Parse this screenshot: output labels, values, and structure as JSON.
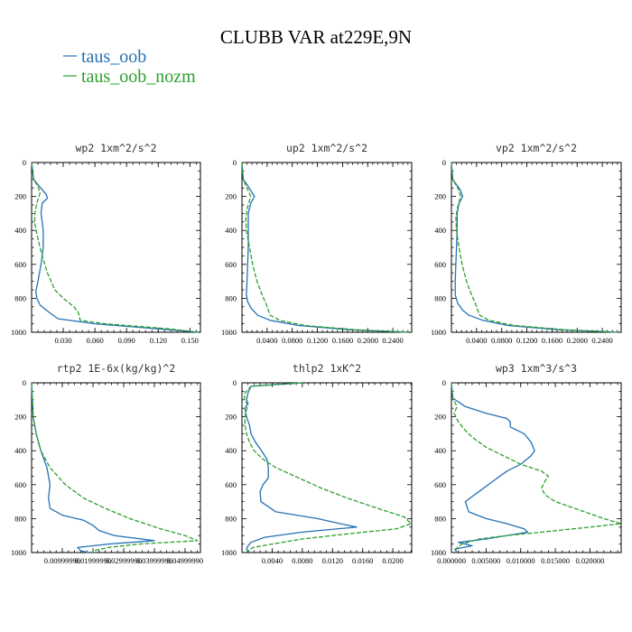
{
  "title": "CLUBB VAR at229E,9N",
  "legend": [
    {
      "label": "taus_oob",
      "color": "#2471b5"
    },
    {
      "label": "taus_oob_nozm",
      "color": "#2ca02c"
    }
  ],
  "chart_data": [
    {
      "type": "line",
      "title": "wp2  1xm^2/s^2",
      "ylim": [
        1000,
        0
      ],
      "xlim": [
        0,
        0.16
      ],
      "xticks": [
        0.03,
        0.06,
        0.09,
        0.12,
        0.15
      ],
      "xtick_labels": [
        "0.030",
        "0.060",
        "0.090",
        "0.120",
        "0.150"
      ],
      "yticks": [
        0,
        200,
        400,
        600,
        800,
        1000
      ],
      "series": [
        {
          "name": "taus_oob",
          "color": "#2471b5",
          "dash": "",
          "p": [
            0,
            100,
            130,
            160,
            190,
            210,
            240,
            300,
            400,
            500,
            600,
            700,
            760,
            800,
            840,
            880,
            920,
            950,
            980,
            1000
          ],
          "v": [
            0.0,
            0.002,
            0.006,
            0.01,
            0.014,
            0.015,
            0.01,
            0.009,
            0.011,
            0.011,
            0.009,
            0.006,
            0.004,
            0.005,
            0.008,
            0.016,
            0.025,
            0.06,
            0.12,
            0.158
          ]
        },
        {
          "name": "taus_oob_nozm",
          "color": "#2ca02c",
          "dash": "5,2",
          "p": [
            0,
            100,
            140,
            180,
            240,
            300,
            360,
            450,
            550,
            650,
            750,
            800,
            850,
            880,
            900,
            930,
            950,
            980,
            1000
          ],
          "v": [
            0.0,
            0.002,
            0.006,
            0.008,
            0.005,
            0.003,
            0.003,
            0.006,
            0.01,
            0.015,
            0.022,
            0.03,
            0.04,
            0.044,
            0.045,
            0.046,
            0.07,
            0.13,
            0.158
          ]
        }
      ]
    },
    {
      "type": "line",
      "title": "up2  1xm^2/s^2",
      "ylim": [
        1000,
        0
      ],
      "xlim": [
        0,
        0.27
      ],
      "xticks": [
        0.04,
        0.08,
        0.12,
        0.16,
        0.2,
        0.24
      ],
      "xtick_labels": [
        "0.0400",
        "0.0800",
        "0.1200",
        "0.1600",
        "0.2000",
        "0.2400"
      ],
      "yticks": [
        0,
        200,
        400,
        600,
        800,
        1000
      ],
      "series": [
        {
          "name": "taus_oob",
          "color": "#2471b5",
          "dash": "",
          "p": [
            0,
            100,
            130,
            160,
            200,
            240,
            300,
            400,
            500,
            600,
            700,
            780,
            820,
            860,
            900,
            930,
            960,
            985,
            1000
          ],
          "v": [
            0.0,
            0.002,
            0.008,
            0.013,
            0.02,
            0.014,
            0.01,
            0.01,
            0.01,
            0.009,
            0.008,
            0.007,
            0.009,
            0.015,
            0.025,
            0.045,
            0.09,
            0.17,
            0.265
          ]
        },
        {
          "name": "taus_oob_nozm",
          "color": "#2ca02c",
          "dash": "5,2",
          "p": [
            0,
            100,
            150,
            200,
            260,
            320,
            400,
            500,
            600,
            700,
            780,
            830,
            870,
            900,
            930,
            960,
            985,
            1000
          ],
          "v": [
            0.0,
            0.002,
            0.008,
            0.014,
            0.009,
            0.006,
            0.007,
            0.012,
            0.017,
            0.024,
            0.032,
            0.038,
            0.042,
            0.045,
            0.06,
            0.1,
            0.18,
            0.265
          ]
        }
      ]
    },
    {
      "type": "line",
      "title": "vp2  1xm^2/s^2",
      "ylim": [
        1000,
        0
      ],
      "xlim": [
        0,
        0.27
      ],
      "xticks": [
        0.04,
        0.08,
        0.12,
        0.16,
        0.2,
        0.24
      ],
      "xtick_labels": [
        "0.0400",
        "0.0800",
        "0.1200",
        "0.1600",
        "0.2000",
        "0.2400"
      ],
      "yticks": [
        0,
        200,
        400,
        600,
        800,
        1000
      ],
      "series": [
        {
          "name": "taus_oob",
          "color": "#2471b5",
          "dash": "",
          "p": [
            0,
            100,
            130,
            160,
            200,
            240,
            300,
            400,
            500,
            600,
            700,
            780,
            830,
            870,
            900,
            930,
            960,
            985,
            1000
          ],
          "v": [
            0.0,
            0.002,
            0.008,
            0.014,
            0.018,
            0.012,
            0.009,
            0.009,
            0.008,
            0.007,
            0.006,
            0.006,
            0.01,
            0.018,
            0.028,
            0.05,
            0.09,
            0.17,
            0.265
          ]
        },
        {
          "name": "taus_oob_nozm",
          "color": "#2ca02c",
          "dash": "5,2",
          "p": [
            0,
            100,
            150,
            200,
            260,
            320,
            400,
            500,
            600,
            700,
            780,
            830,
            870,
            900,
            930,
            960,
            985,
            1000
          ],
          "v": [
            0.0,
            0.002,
            0.01,
            0.015,
            0.01,
            0.007,
            0.008,
            0.012,
            0.017,
            0.024,
            0.032,
            0.038,
            0.042,
            0.045,
            0.06,
            0.1,
            0.18,
            0.265
          ]
        }
      ]
    },
    {
      "type": "line",
      "title": "rtp2  1E-6x(kg/kg)^2",
      "ylim": [
        1000,
        0
      ],
      "xlim": [
        0,
        0.055
      ],
      "xticks": [
        0.0099999,
        0.0199999,
        0.0299999,
        0.0399999,
        0.0499999
      ],
      "xtick_labels": [
        "0.00999990",
        "0.01999990",
        "0.02999990",
        "0.03999990",
        "0.04999990"
      ],
      "yticks": [
        0,
        200,
        400,
        600,
        800,
        1000
      ],
      "series": [
        {
          "name": "taus_oob",
          "color": "#2471b5",
          "dash": "",
          "p": [
            0,
            200,
            300,
            400,
            500,
            600,
            680,
            740,
            780,
            810,
            840,
            870,
            900,
            930,
            950,
            970,
            990,
            1000
          ],
          "v": [
            0.0,
            0.0005,
            0.0015,
            0.003,
            0.005,
            0.006,
            0.0055,
            0.006,
            0.01,
            0.017,
            0.02,
            0.022,
            0.027,
            0.04,
            0.025,
            0.015,
            0.016,
            0.0185
          ]
        },
        {
          "name": "taus_oob_nozm",
          "color": "#2ca02c",
          "dash": "5,2",
          "p": [
            0,
            200,
            300,
            400,
            500,
            600,
            680,
            740,
            800,
            860,
            900,
            930,
            950,
            970,
            990,
            1000
          ],
          "v": [
            0.0,
            0.0005,
            0.0015,
            0.003,
            0.006,
            0.011,
            0.017,
            0.024,
            0.032,
            0.042,
            0.05,
            0.054,
            0.035,
            0.025,
            0.02,
            0.02
          ]
        }
      ]
    },
    {
      "type": "line",
      "title": "thlp2  1xK^2",
      "ylim": [
        1000,
        0
      ],
      "xlim": [
        0,
        0.0225
      ],
      "xticks": [
        0.004,
        0.008,
        0.012,
        0.016,
        0.02
      ],
      "xtick_labels": [
        "0.0040",
        "0.0080",
        "0.0120",
        "0.0160",
        "0.0200"
      ],
      "yticks": [
        0,
        200,
        400,
        600,
        800,
        1000
      ],
      "series": [
        {
          "name": "taus_oob",
          "color": "#2471b5",
          "dash": "",
          "p": [
            0,
            20,
            60,
            100,
            120,
            150,
            200,
            250,
            300,
            350,
            400,
            450,
            500,
            560,
            600,
            640,
            700,
            760,
            800,
            830,
            850,
            880,
            910,
            940,
            960,
            980,
            1000
          ],
          "v": [
            0.008,
            0.0012,
            0.0008,
            0.0006,
            0.0008,
            0.0004,
            0.0006,
            0.001,
            0.0012,
            0.0018,
            0.0026,
            0.0033,
            0.0035,
            0.0035,
            0.0028,
            0.0024,
            0.0025,
            0.0045,
            0.01,
            0.013,
            0.0152,
            0.008,
            0.003,
            0.0012,
            0.0008,
            0.0006,
            0.001
          ]
        },
        {
          "name": "taus_oob_nozm",
          "color": "#2ca02c",
          "dash": "5,2",
          "p": [
            0,
            20,
            60,
            100,
            130,
            160,
            200,
            250,
            300,
            350,
            400,
            450,
            500,
            560,
            620,
            680,
            740,
            790,
            830,
            860,
            890,
            920,
            950,
            970,
            990,
            1000
          ],
          "v": [
            0.008,
            0.0012,
            0.0004,
            0.0003,
            0.0008,
            0.0006,
            0.0004,
            0.0004,
            0.0006,
            0.001,
            0.0016,
            0.0028,
            0.0045,
            0.0075,
            0.0105,
            0.014,
            0.018,
            0.0215,
            0.0224,
            0.0205,
            0.014,
            0.008,
            0.004,
            0.0015,
            0.0008,
            0.0006
          ]
        }
      ]
    },
    {
      "type": "line",
      "title": "wp3  1xm^3/s^3",
      "ylim": [
        1000,
        0
      ],
      "xlim": [
        0,
        0.0245
      ],
      "xticks": [
        0.0,
        0.005,
        0.01,
        0.015,
        0.02
      ],
      "xtick_labels": [
        "0.000000",
        "0.005000",
        "0.010000",
        "0.015000",
        "0.020000"
      ],
      "yticks": [
        0,
        200,
        400,
        600,
        800,
        1000
      ],
      "series": [
        {
          "name": "taus_oob",
          "color": "#2471b5",
          "dash": "",
          "p": [
            0,
            90,
            140,
            180,
            210,
            230,
            260,
            300,
            350,
            400,
            430,
            480,
            520,
            580,
            640,
            700,
            760,
            800,
            830,
            860,
            880,
            920,
            940,
            960,
            980,
            1000
          ],
          "v": [
            0.0,
            0.0002,
            0.002,
            0.005,
            0.008,
            0.0085,
            0.0085,
            0.0105,
            0.0115,
            0.012,
            0.0115,
            0.01,
            0.008,
            0.006,
            0.004,
            0.002,
            0.0025,
            0.005,
            0.008,
            0.0105,
            0.011,
            0.005,
            0.001,
            0.003,
            0.0005,
            0.0008
          ]
        },
        {
          "name": "taus_oob_nozm",
          "color": "#2ca02c",
          "dash": "5,2",
          "p": [
            0,
            90,
            140,
            180,
            230,
            280,
            320,
            380,
            430,
            480,
            520,
            550,
            580,
            620,
            660,
            700,
            750,
            800,
            830,
            850,
            880,
            900,
            920,
            950,
            980,
            1000
          ],
          "v": [
            0.0,
            0.0002,
            0.0008,
            0.0004,
            0.001,
            0.002,
            0.003,
            0.005,
            0.0075,
            0.01,
            0.013,
            0.014,
            0.0135,
            0.013,
            0.0135,
            0.015,
            0.0185,
            0.022,
            0.0245,
            0.02,
            0.013,
            0.008,
            0.004,
            0.0015,
            0.0006,
            0.0008
          ]
        }
      ]
    }
  ]
}
